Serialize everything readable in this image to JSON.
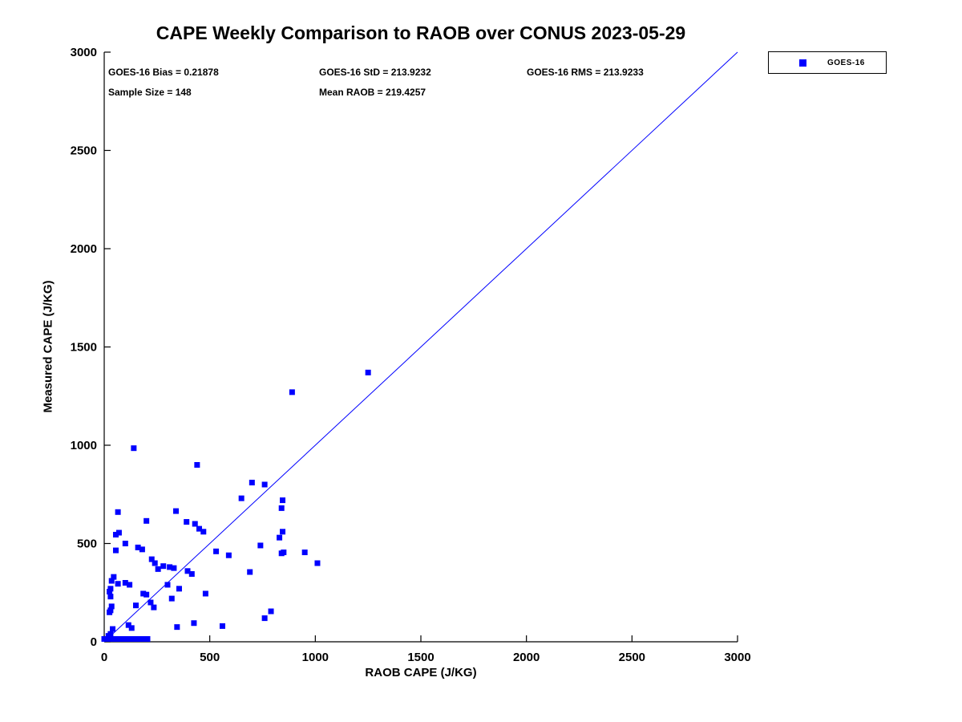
{
  "chart_data": {
    "type": "scatter",
    "title": "CAPE Weekly Comparison to RAOB over CONUS 2023-05-29",
    "xlabel": "RAOB CAPE (J/KG)",
    "ylabel": "Measured CAPE (J/KG)",
    "xlim": [
      0,
      3000
    ],
    "ylim": [
      0,
      3000
    ],
    "xticks": [
      0,
      500,
      1000,
      1500,
      2000,
      2500,
      3000
    ],
    "yticks": [
      0,
      500,
      1000,
      1500,
      2000,
      2500,
      3000
    ],
    "grid": false,
    "stats": {
      "bias": "GOES-16 Bias = 0.21878",
      "std": "GOES-16 StD = 213.9232",
      "rms": "GOES-16 RMS = 213.9233",
      "sample": "Sample Size = 148",
      "mean_raob": "Mean RAOB = 219.4257"
    },
    "legend": {
      "position": "top-right",
      "entries": [
        {
          "label": "GOES-16",
          "marker": "square",
          "color": "#0000ff"
        }
      ]
    },
    "reference_line": {
      "from": [
        0,
        0
      ],
      "to": [
        3000,
        3000
      ],
      "color": "#0000ff"
    },
    "series": [
      {
        "name": "GOES-16",
        "marker": "square",
        "color": "#0000ff",
        "points": [
          [
            1250,
            1370
          ],
          [
            890,
            1270
          ],
          [
            140,
            985
          ],
          [
            440,
            900
          ],
          [
            700,
            810
          ],
          [
            760,
            800
          ],
          [
            650,
            730
          ],
          [
            845,
            720
          ],
          [
            840,
            680
          ],
          [
            340,
            665
          ],
          [
            65,
            660
          ],
          [
            200,
            615
          ],
          [
            390,
            610
          ],
          [
            430,
            600
          ],
          [
            450,
            575
          ],
          [
            845,
            560
          ],
          [
            470,
            560
          ],
          [
            70,
            555
          ],
          [
            55,
            545
          ],
          [
            830,
            530
          ],
          [
            100,
            500
          ],
          [
            740,
            490
          ],
          [
            160,
            480
          ],
          [
            180,
            470
          ],
          [
            55,
            465
          ],
          [
            530,
            460
          ],
          [
            850,
            455
          ],
          [
            950,
            455
          ],
          [
            840,
            450
          ],
          [
            590,
            440
          ],
          [
            225,
            420
          ],
          [
            1010,
            400
          ],
          [
            240,
            400
          ],
          [
            280,
            385
          ],
          [
            310,
            380
          ],
          [
            330,
            375
          ],
          [
            255,
            370
          ],
          [
            395,
            360
          ],
          [
            690,
            355
          ],
          [
            415,
            345
          ],
          [
            45,
            330
          ],
          [
            35,
            310
          ],
          [
            100,
            300
          ],
          [
            65,
            295
          ],
          [
            120,
            290
          ],
          [
            300,
            290
          ],
          [
            355,
            270
          ],
          [
            30,
            270
          ],
          [
            25,
            255
          ],
          [
            480,
            245
          ],
          [
            185,
            245
          ],
          [
            200,
            240
          ],
          [
            30,
            230
          ],
          [
            320,
            220
          ],
          [
            220,
            200
          ],
          [
            150,
            185
          ],
          [
            35,
            180
          ],
          [
            235,
            175
          ],
          [
            30,
            160
          ],
          [
            25,
            150
          ],
          [
            790,
            155
          ],
          [
            760,
            120
          ],
          [
            425,
            95
          ],
          [
            115,
            85
          ],
          [
            560,
            80
          ],
          [
            345,
            75
          ],
          [
            130,
            70
          ],
          [
            40,
            65
          ],
          [
            30,
            40
          ],
          [
            20,
            30
          ],
          [
            0,
            0
          ],
          [
            3,
            0
          ],
          [
            5,
            0
          ],
          [
            8,
            0
          ],
          [
            11,
            0
          ],
          [
            13,
            0
          ],
          [
            16,
            0
          ],
          [
            19,
            0
          ],
          [
            21,
            0
          ],
          [
            24,
            0
          ],
          [
            27,
            0
          ],
          [
            29,
            0
          ],
          [
            32,
            0
          ],
          [
            35,
            0
          ],
          [
            37,
            0
          ],
          [
            40,
            0
          ],
          [
            43,
            0
          ],
          [
            45,
            0
          ],
          [
            48,
            0
          ],
          [
            51,
            0
          ],
          [
            53,
            0
          ],
          [
            56,
            0
          ],
          [
            59,
            0
          ],
          [
            61,
            0
          ],
          [
            64,
            0
          ],
          [
            67,
            0
          ],
          [
            69,
            0
          ],
          [
            72,
            0
          ],
          [
            75,
            0
          ],
          [
            77,
            0
          ],
          [
            80,
            0
          ],
          [
            83,
            0
          ],
          [
            85,
            0
          ],
          [
            88,
            0
          ],
          [
            91,
            0
          ],
          [
            93,
            0
          ],
          [
            96,
            0
          ],
          [
            99,
            0
          ],
          [
            101,
            0
          ],
          [
            104,
            0
          ],
          [
            107,
            0
          ],
          [
            109,
            0
          ],
          [
            112,
            0
          ],
          [
            115,
            0
          ],
          [
            117,
            0
          ],
          [
            120,
            0
          ],
          [
            123,
            0
          ],
          [
            125,
            0
          ],
          [
            128,
            0
          ],
          [
            131,
            0
          ],
          [
            133,
            0
          ],
          [
            136,
            0
          ],
          [
            139,
            0
          ],
          [
            141,
            0
          ],
          [
            144,
            0
          ],
          [
            147,
            0
          ],
          [
            149,
            0
          ],
          [
            152,
            0
          ],
          [
            155,
            0
          ],
          [
            157,
            0
          ],
          [
            160,
            0
          ],
          [
            163,
            0
          ],
          [
            165,
            0
          ],
          [
            168,
            0
          ],
          [
            171,
            0
          ],
          [
            173,
            0
          ],
          [
            176,
            0
          ],
          [
            179,
            0
          ],
          [
            181,
            0
          ],
          [
            184,
            0
          ],
          [
            187,
            0
          ],
          [
            189,
            0
          ],
          [
            192,
            0
          ],
          [
            195,
            0
          ],
          [
            197,
            0
          ],
          [
            200,
            0
          ],
          [
            203,
            0
          ],
          [
            205,
            0
          ]
        ]
      }
    ]
  }
}
